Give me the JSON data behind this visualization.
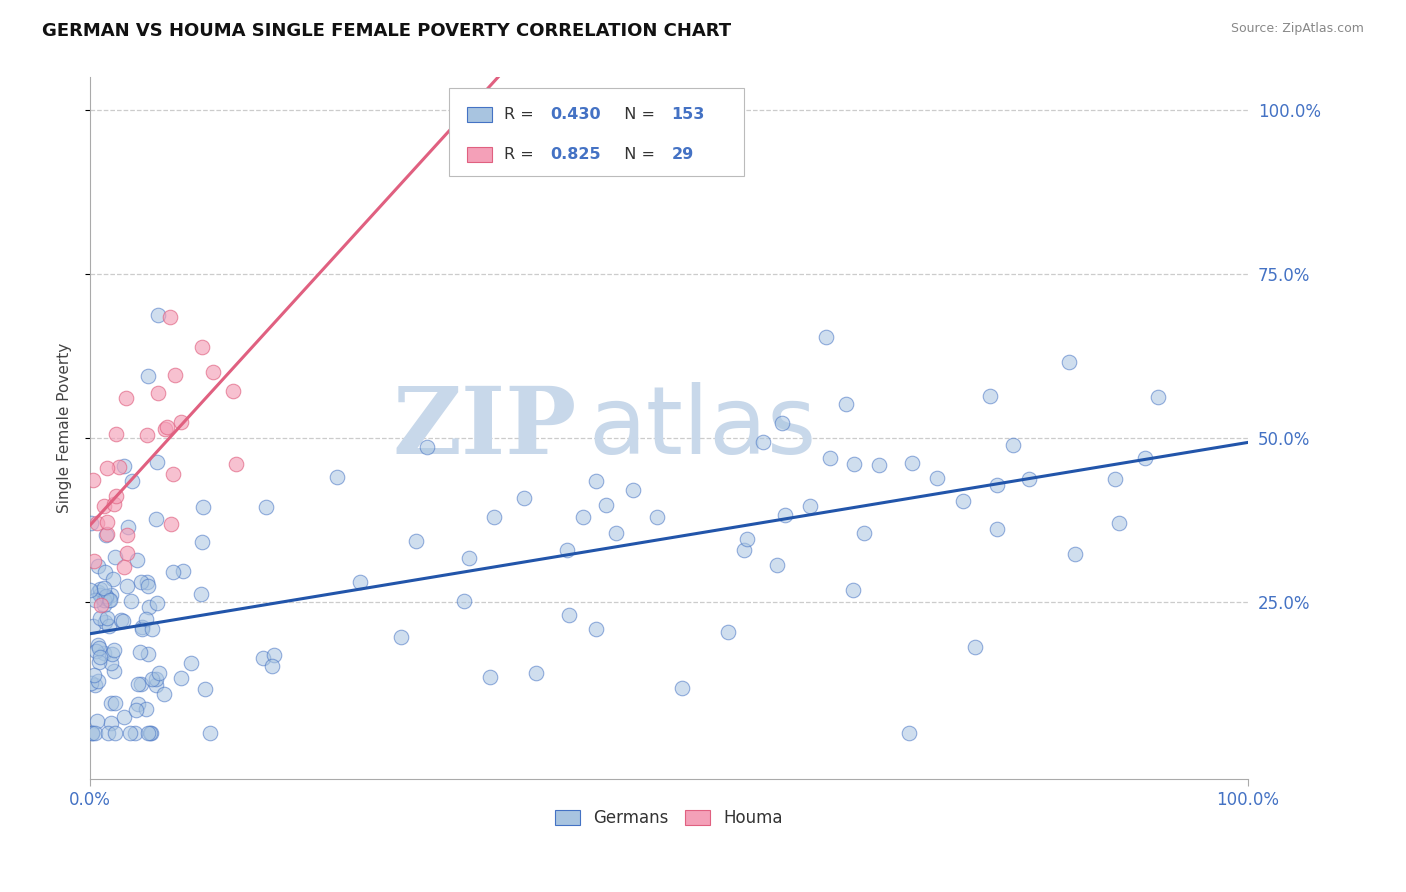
{
  "title": "GERMAN VS HOUMA SINGLE FEMALE POVERTY CORRELATION CHART",
  "source_text": "Source: ZipAtlas.com",
  "ylabel": "Single Female Poverty",
  "xlim": [
    0.0,
    1.0
  ],
  "ylim": [
    -0.02,
    1.05
  ],
  "xtick_labels": [
    "0.0%",
    "100.0%"
  ],
  "ytick_labels": [
    "25.0%",
    "50.0%",
    "75.0%",
    "100.0%"
  ],
  "ytick_positions": [
    0.25,
    0.5,
    0.75,
    1.0
  ],
  "legend_bottom": [
    "Germans",
    "Houma"
  ],
  "R_german": "0.430",
  "N_german": "153",
  "R_houma": "0.825",
  "N_houma": "29",
  "german_fill": "#a8c4e0",
  "german_edge": "#4472c4",
  "houma_fill": "#f4a0b8",
  "houma_edge": "#e06080",
  "german_line_color": "#2255aa",
  "houma_line_color": "#e06080",
  "watermark_zip": "ZIP",
  "watermark_atlas": "atlas",
  "watermark_color": "#c8d8ea",
  "background_color": "#ffffff",
  "grid_color": "#cccccc",
  "title_fontsize": 13,
  "tick_label_color": "#4472c4",
  "source_color": "#888888"
}
